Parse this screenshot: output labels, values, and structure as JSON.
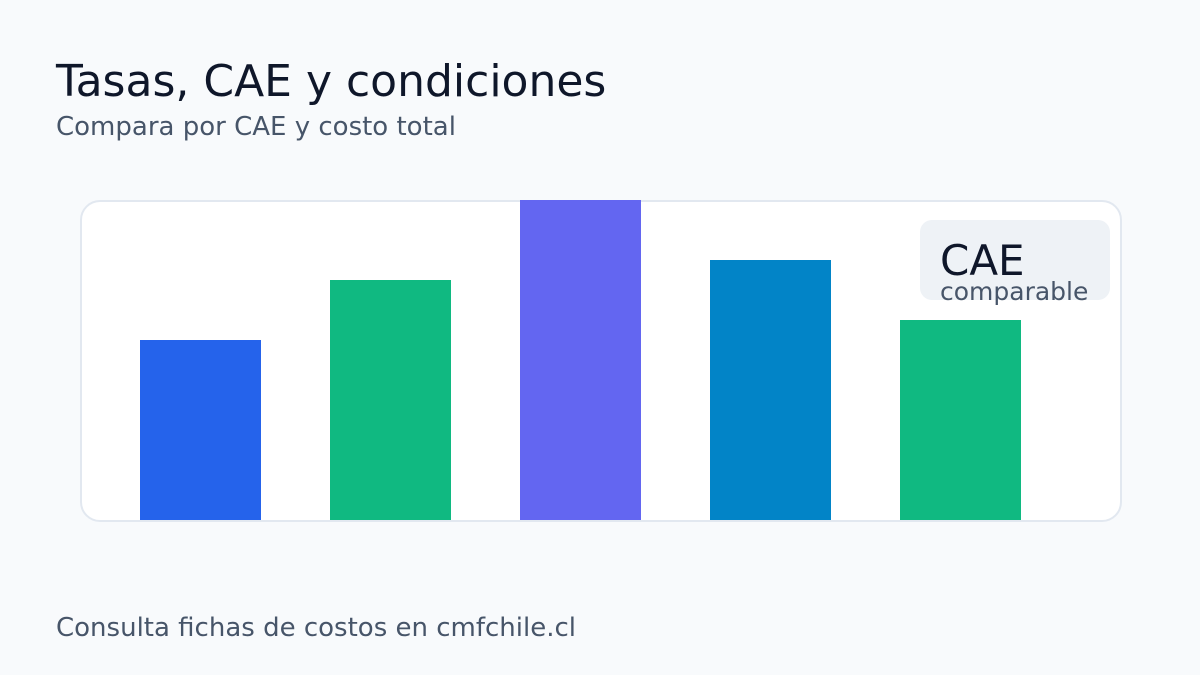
{
  "header": {
    "title": "Tasas, CAE y condiciones",
    "subtitle": "Compara por CAE y costo total"
  },
  "badge": {
    "title": "CAE",
    "subtitle": "comparable"
  },
  "footer": {
    "text": "Consulta fichas de costos en cmfchile.cl"
  },
  "chart_data": {
    "type": "bar",
    "values": [
      180,
      240,
      320,
      260,
      200
    ],
    "ylim": [
      0,
      320
    ],
    "colors": [
      "#2563eb",
      "#10b981",
      "#6366f1",
      "#0284c7",
      "#10b981"
    ],
    "grid": false,
    "legend": "none"
  }
}
